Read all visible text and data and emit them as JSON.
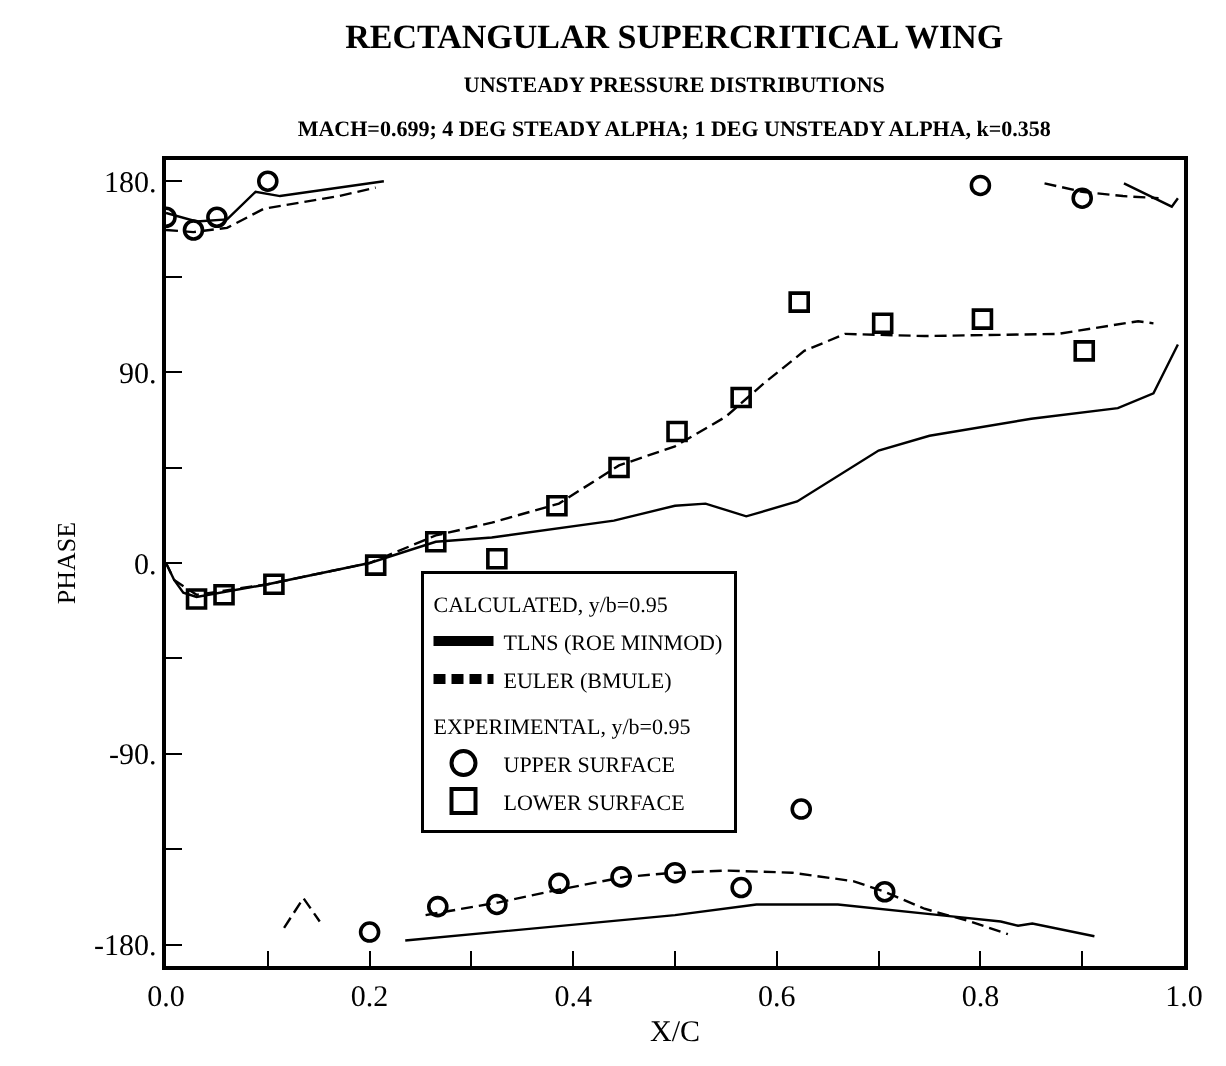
{
  "chart_data": {
    "type": "line",
    "title": "RECTANGULAR SUPERCRITICAL WING",
    "subtitle": "UNSTEADY PRESSURE DISTRIBUTIONS\nMACH=0.699; 4 DEG STEADY ALPHA; 1 DEG UNSTEADY ALPHA, k=0.358",
    "xlabel": "X/C",
    "ylabel": "PHASE",
    "legend_title": "CALCULATED, y/b=0.95",
    "annotations": [
      "EXPERIMENTAL, y/b=0.95"
    ],
    "series": [
      {
        "name": "TLNS (ROE MINMOD)",
        "line_style": "solid",
        "color": "#000000",
        "x": [
          0,
          0.03,
          0.06,
          0.088,
          0.112,
          0.214,
          null,
          0.235,
          0.5,
          0.58,
          0.66,
          0.76,
          0.82,
          0.837,
          0.851,
          0.912,
          null,
          0.941,
          0.988,
          0.994,
          null,
          0,
          0.008,
          0.017,
          0.03,
          0.1,
          0.2,
          0.265,
          0.32,
          0.44,
          0.5,
          0.53,
          0.57,
          0.62,
          0.7,
          0.75,
          0.85,
          0.935,
          0.97,
          0.994
        ],
        "values": [
          165,
          161,
          162,
          175,
          173,
          180,
          null,
          -178,
          -166,
          -161,
          -161,
          -166,
          -169,
          -171,
          -170,
          -176,
          null,
          179,
          168,
          172,
          null,
          0,
          -8,
          -14,
          -16,
          -10,
          0,
          10,
          12,
          20,
          27,
          28,
          22,
          29,
          53,
          60,
          68,
          73,
          80,
          103
        ]
      },
      {
        "name": "EULER (BMULE)",
        "line_style": "dashed",
        "color": "#000000",
        "x": [
          0,
          0.027,
          0.06,
          0.096,
          0.17,
          0.206,
          null,
          0.863,
          0.9,
          0.94,
          0.975,
          null,
          0.116,
          0.135,
          0.151,
          null,
          0.255,
          0.327,
          0.386,
          0.451,
          0.5,
          0.55,
          0.615,
          0.675,
          0.706,
          0.745,
          0.79,
          0.827,
          null,
          0,
          0.008,
          0.03,
          0.1,
          0.2,
          0.265,
          0.32,
          0.386,
          0.445,
          0.5,
          0.55,
          0.588,
          0.627,
          0.667,
          0.745,
          0.876,
          0.955,
          0.97
        ],
        "values": [
          157,
          156,
          158,
          167,
          173,
          177,
          null,
          179,
          175,
          173,
          172,
          null,
          -172,
          -158,
          -169,
          null,
          -166,
          -160,
          -154,
          -148,
          -146,
          -145,
          -146,
          -150,
          -155,
          -163,
          -169,
          -175,
          null,
          0,
          -8,
          -15,
          -10,
          0,
          13,
          19,
          28,
          46,
          55,
          69,
          85,
          100,
          108,
          107,
          108,
          114,
          113
        ]
      },
      {
        "name": "UPPER SURFACE",
        "type": "scatter",
        "marker": "circle",
        "color": "#000000",
        "x": [
          0,
          0.027,
          0.05,
          0.1,
          0.2,
          0.267,
          0.325,
          0.386,
          0.447,
          0.5,
          0.565,
          0.624,
          0.706,
          0.8,
          0.9
        ],
        "values": [
          163,
          157,
          163,
          180,
          -174,
          -162,
          -161,
          -151,
          -148,
          -146,
          -153,
          -116,
          -155,
          178,
          172
        ]
      },
      {
        "name": "LOWER SURFACE",
        "type": "scatter",
        "marker": "square",
        "color": "#000000",
        "x": [
          0.03,
          0.057,
          0.106,
          0.206,
          0.265,
          0.325,
          0.384,
          0.445,
          0.502,
          0.565,
          0.622,
          0.704,
          0.802,
          0.902
        ],
        "values": [
          -17,
          -15,
          -10,
          -1,
          10,
          2,
          27,
          45,
          62,
          78,
          123,
          113,
          115,
          100
        ]
      }
    ],
    "xlim": [
      0,
      1
    ],
    "xticks": [
      {
        "value": 0,
        "label": "0.0"
      },
      {
        "value": 0.1,
        "label": null
      },
      {
        "value": 0.2,
        "label": "0.2"
      },
      {
        "value": 0.3,
        "label": null
      },
      {
        "value": 0.4,
        "label": "0.4"
      },
      {
        "value": 0.5,
        "label": null
      },
      {
        "value": 0.6,
        "label": "0.6"
      },
      {
        "value": 0.7,
        "label": null
      },
      {
        "value": 0.8,
        "label": "0.8"
      },
      {
        "value": 0.9,
        "label": null
      },
      {
        "value": 1,
        "label": "1.0"
      }
    ],
    "ylim": [
      -190,
      190
    ],
    "yticks": [
      {
        "value": -180,
        "label": "-180."
      },
      {
        "value": -135,
        "label": null
      },
      {
        "value": -90,
        "label": "-90."
      },
      {
        "value": -45,
        "label": null
      },
      {
        "value": 0,
        "label": "0."
      },
      {
        "value": 45,
        "label": null
      },
      {
        "value": 90,
        "label": "90."
      },
      {
        "value": 135,
        "label": null
      },
      {
        "value": 180,
        "label": "180."
      }
    ],
    "legend": "center"
  }
}
